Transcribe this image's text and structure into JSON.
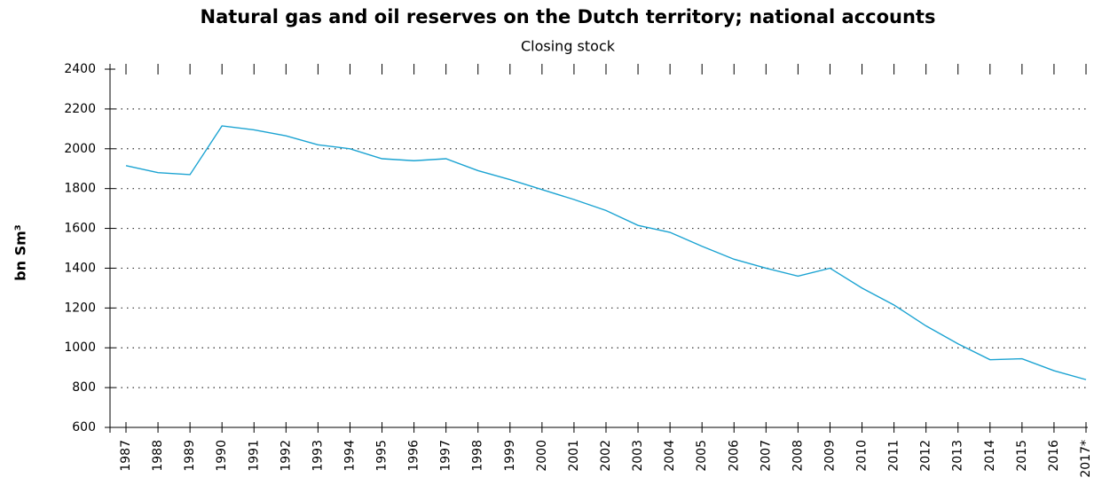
{
  "chart_data": {
    "type": "line",
    "title": "Natural gas and oil reserves on the Dutch territory; national accounts",
    "subtitle": "Closing stock",
    "y_label": "bn Sm³",
    "categories": [
      "1987",
      "1988",
      "1989",
      "1990",
      "1991",
      "1992",
      "1993",
      "1994",
      "1995",
      "1996",
      "1997",
      "1998",
      "1999",
      "2000",
      "2001",
      "2002",
      "2003",
      "2004",
      "2005",
      "2006",
      "2007",
      "2008",
      "2009",
      "2010",
      "2011",
      "2012",
      "2013",
      "2014",
      "2015",
      "2016",
      "2017*"
    ],
    "series": [
      {
        "name": "Closing stock",
        "color": "#1ba3d2",
        "values": [
          1915,
          1880,
          1870,
          2115,
          2095,
          2065,
          2020,
          2000,
          1950,
          1940,
          1950,
          1890,
          1845,
          1795,
          1745,
          1690,
          1615,
          1580,
          1510,
          1445,
          1400,
          1360,
          1400,
          1300,
          1215,
          1110,
          1020,
          940,
          945,
          885,
          840
        ]
      }
    ],
    "ylim": [
      600,
      2400
    ],
    "yticks": [
      600,
      800,
      1000,
      1200,
      1400,
      1600,
      1800,
      2000,
      2200,
      2400
    ],
    "grid": true
  }
}
